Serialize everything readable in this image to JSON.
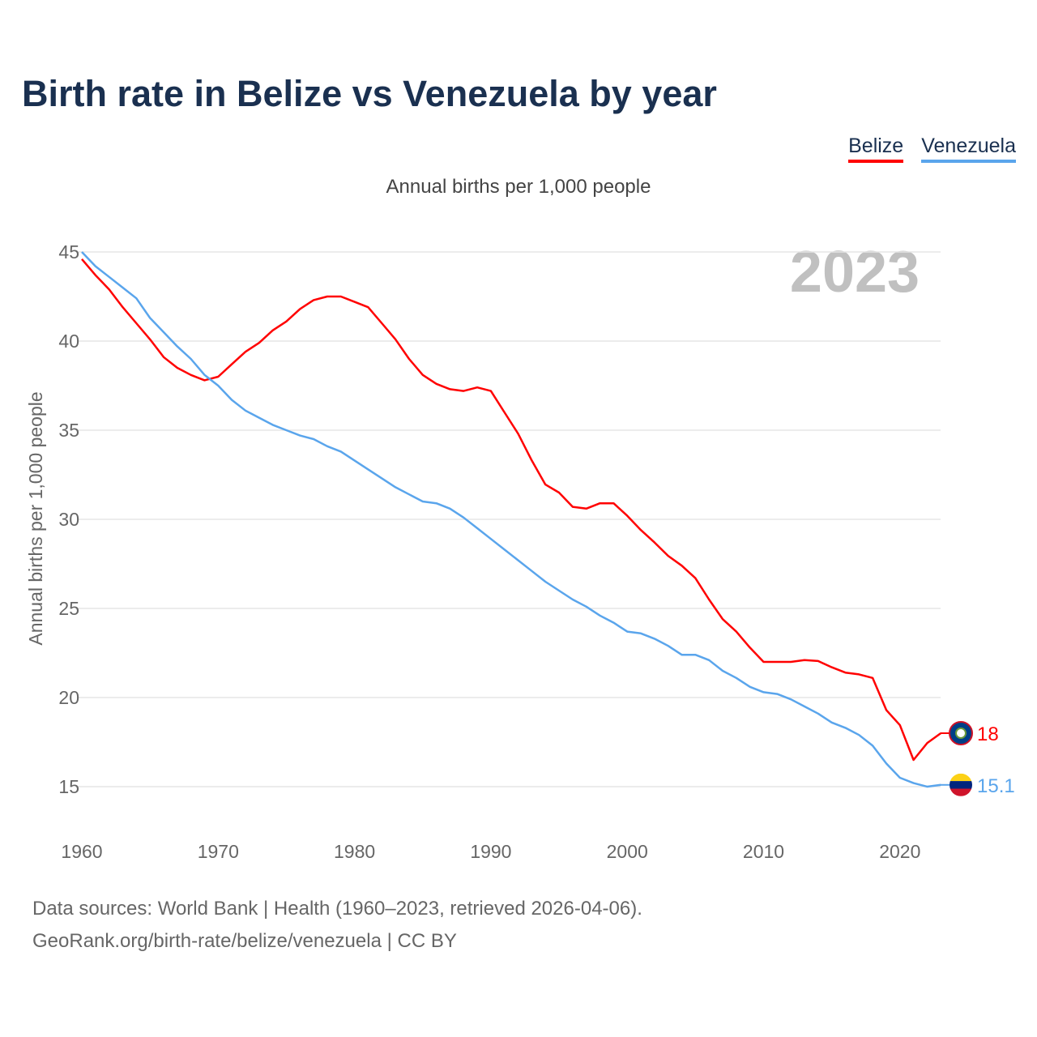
{
  "title": "Birth rate in Belize vs Venezuela by year",
  "subtitle": "Annual births per 1,000 people",
  "year_label": "2023",
  "sources": [
    "Data sources: World Bank | Health (1960–2023, retrieved 2026-04-06).",
    "GeoRank.org/birth-rate/belize/venezuela | CC BY"
  ],
  "chart_data": {
    "type": "line",
    "title": "Birth rate in Belize vs Venezuela by year",
    "xlabel": "",
    "ylabel": "Annual births per 1,000 people",
    "xlim": [
      1960,
      2023
    ],
    "ylim": [
      15,
      45
    ],
    "xticks": [
      1960,
      1970,
      1980,
      1990,
      2000,
      2010,
      2020
    ],
    "yticks": [
      15,
      20,
      25,
      30,
      35,
      40,
      45
    ],
    "legend": "top-right",
    "grid": true,
    "x_start": 1960,
    "series": [
      {
        "name": "Belize",
        "color": "#ff0000",
        "end_label": "18",
        "values": [
          44.6,
          43.7,
          42.9,
          41.9,
          41.0,
          40.1,
          39.1,
          38.5,
          38.1,
          37.8,
          38.0,
          38.7,
          39.4,
          39.9,
          40.6,
          41.1,
          41.8,
          42.3,
          42.5,
          42.5,
          42.2,
          41.9,
          41.0,
          40.1,
          39.0,
          38.1,
          37.6,
          37.3,
          37.2,
          37.4,
          37.2,
          36.0,
          34.8,
          33.3,
          31.95,
          31.5,
          30.7,
          30.6,
          30.9,
          30.9,
          30.2,
          29.4,
          28.7,
          27.95,
          27.4,
          26.7,
          25.5,
          24.4,
          23.7,
          22.8,
          22.0,
          22.0,
          22.0,
          22.1,
          22.05,
          21.7,
          21.4,
          21.3,
          21.1,
          19.3,
          18.45,
          16.5,
          17.45,
          18.0
        ]
      },
      {
        "name": "Venezuela",
        "color": "#5aa5ec",
        "end_label": "15.1",
        "values": [
          45.0,
          44.2,
          43.6,
          43.0,
          42.4,
          41.3,
          40.5,
          39.7,
          39.0,
          38.1,
          37.5,
          36.7,
          36.1,
          35.7,
          35.3,
          35.0,
          34.7,
          34.5,
          34.1,
          33.8,
          33.3,
          32.8,
          32.3,
          31.8,
          31.4,
          31.0,
          30.9,
          30.6,
          30.1,
          29.5,
          28.9,
          28.3,
          27.7,
          27.1,
          26.5,
          26.0,
          25.5,
          25.1,
          24.6,
          24.2,
          23.7,
          23.6,
          23.3,
          22.9,
          22.4,
          22.4,
          22.1,
          21.5,
          21.1,
          20.6,
          20.3,
          20.2,
          19.9,
          19.5,
          19.1,
          18.6,
          18.3,
          17.9,
          17.3,
          16.3,
          15.5,
          15.2,
          15.0,
          15.1
        ]
      }
    ]
  }
}
